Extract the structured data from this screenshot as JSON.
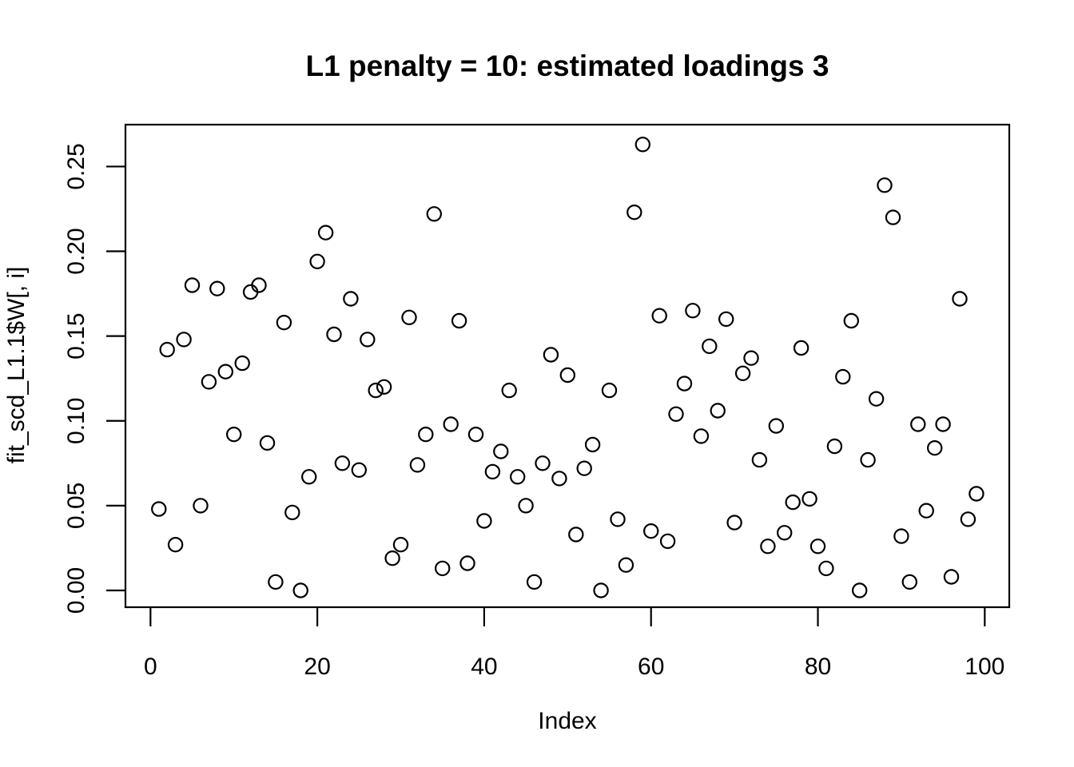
{
  "colors": {
    "foreground": "#000000",
    "background": "#ffffff"
  },
  "chart_data": {
    "type": "scatter",
    "title": "L1 penalty = 10: estimated loadings 3",
    "xlabel": "Index",
    "ylabel": "fit_scd_L1.1$W[, i]",
    "marker": "open-circle",
    "grid": false,
    "legend": null,
    "xlim": [
      -3.0,
      102.94
    ],
    "ylim": [
      -0.0099,
      0.2747
    ],
    "x_ticks": [
      0,
      20,
      40,
      60,
      80,
      100
    ],
    "x_tick_labels": [
      "0",
      "20",
      "40",
      "60",
      "80",
      "100"
    ],
    "y_ticks": [
      0.0,
      0.05,
      0.1,
      0.15,
      0.2,
      0.25
    ],
    "y_tick_labels": [
      "0.00",
      "0.05",
      "0.10",
      "0.15",
      "0.20",
      "0.25"
    ],
    "x": [
      1,
      2,
      3,
      4,
      5,
      6,
      7,
      8,
      9,
      10,
      11,
      12,
      13,
      14,
      15,
      16,
      17,
      18,
      19,
      20,
      21,
      22,
      23,
      24,
      25,
      26,
      27,
      28,
      29,
      30,
      31,
      32,
      33,
      34,
      35,
      36,
      37,
      38,
      39,
      40,
      41,
      42,
      43,
      44,
      45,
      46,
      47,
      48,
      49,
      50,
      51,
      52,
      53,
      54,
      55,
      56,
      57,
      58,
      59,
      60,
      61,
      62,
      63,
      64,
      65,
      66,
      67,
      68,
      69,
      70,
      71,
      72,
      73,
      74,
      75,
      76,
      77,
      78,
      79,
      80,
      81,
      82,
      83,
      84,
      85,
      86,
      87,
      88,
      89,
      90,
      91,
      92,
      93,
      94,
      95,
      96,
      97,
      98,
      99
    ],
    "y": [
      0.048,
      0.142,
      0.027,
      0.148,
      0.18,
      0.05,
      0.123,
      0.178,
      0.129,
      0.092,
      0.134,
      0.176,
      0.18,
      0.087,
      0.005,
      0.158,
      0.046,
      0.0,
      0.067,
      0.194,
      0.211,
      0.151,
      0.075,
      0.172,
      0.071,
      0.148,
      0.118,
      0.12,
      0.019,
      0.027,
      0.161,
      0.074,
      0.092,
      0.222,
      0.013,
      0.098,
      0.159,
      0.016,
      0.092,
      0.041,
      0.07,
      0.082,
      0.118,
      0.067,
      0.05,
      0.005,
      0.075,
      0.139,
      0.066,
      0.127,
      0.033,
      0.072,
      0.086,
      0.0,
      0.118,
      0.042,
      0.015,
      0.223,
      0.263,
      0.035,
      0.162,
      0.029,
      0.104,
      0.122,
      0.165,
      0.091,
      0.144,
      0.106,
      0.16,
      0.04,
      0.128,
      0.137,
      0.077,
      0.026,
      0.097,
      0.034,
      0.052,
      0.143,
      0.054,
      0.026,
      0.013,
      0.085,
      0.126,
      0.159,
      0.0,
      0.077,
      0.113,
      0.239,
      0.22,
      0.032,
      0.005,
      0.098,
      0.047,
      0.084,
      0.098,
      0.008,
      0.172,
      0.042,
      0.057
    ]
  }
}
